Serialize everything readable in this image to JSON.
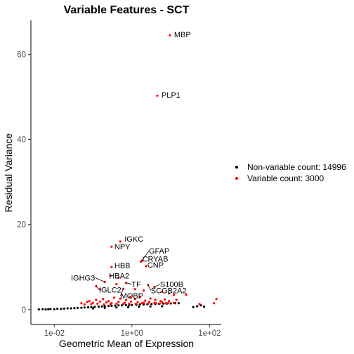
{
  "chart_data": {
    "type": "scatter",
    "title": "Variable Features - SCT",
    "xlabel": "Geometric Mean of Expression",
    "ylabel": "Residual Variance",
    "x_scale": "log10",
    "xlim": [
      0.0025,
      200
    ],
    "ylim": [
      -3.5,
      68
    ],
    "x_ticks": [
      {
        "value": 0.01,
        "label": "1e-02"
      },
      {
        "value": 1,
        "label": "1e+00"
      },
      {
        "value": 100,
        "label": "1e+02"
      }
    ],
    "y_ticks": [
      {
        "value": 0,
        "label": "0"
      },
      {
        "value": 20,
        "label": "20"
      },
      {
        "value": 40,
        "label": "40"
      },
      {
        "value": 60,
        "label": "60"
      }
    ],
    "grid": false,
    "legend_position": "right",
    "series": [
      {
        "name": "Non-variable count: 14996",
        "color": "#000000",
        "points": [
          [
            0.004,
            0.05
          ],
          [
            0.005,
            0.1
          ],
          [
            0.006,
            0.05
          ],
          [
            0.007,
            0.1
          ],
          [
            0.008,
            0.15
          ],
          [
            0.01,
            0.1
          ],
          [
            0.012,
            0.2
          ],
          [
            0.015,
            0.15
          ],
          [
            0.018,
            0.25
          ],
          [
            0.022,
            0.3
          ],
          [
            0.027,
            0.3
          ],
          [
            0.033,
            0.35
          ],
          [
            0.04,
            0.4
          ],
          [
            0.05,
            0.45
          ],
          [
            0.06,
            0.5
          ],
          [
            0.075,
            0.55
          ],
          [
            0.09,
            0.6
          ],
          [
            0.11,
            0.65
          ],
          [
            0.14,
            0.7
          ],
          [
            0.17,
            0.75
          ],
          [
            0.2,
            0.8
          ],
          [
            0.25,
            0.85
          ],
          [
            0.3,
            0.9
          ],
          [
            0.37,
            0.95
          ],
          [
            0.45,
            1.0
          ],
          [
            0.55,
            1.0
          ],
          [
            0.7,
            1.05
          ],
          [
            0.85,
            1.1
          ],
          [
            1.0,
            1.1
          ],
          [
            1.3,
            1.15
          ],
          [
            1.6,
            1.2
          ],
          [
            2.0,
            1.2
          ],
          [
            2.5,
            1.25
          ],
          [
            3.2,
            1.3
          ],
          [
            4.0,
            1.3
          ],
          [
            5.0,
            1.35
          ],
          [
            6.5,
            1.4
          ],
          [
            8.0,
            1.4
          ],
          [
            10,
            1.45
          ],
          [
            13,
            1.5
          ],
          [
            16,
            1.5
          ],
          [
            0.1,
            0.3
          ],
          [
            0.2,
            0.4
          ],
          [
            0.4,
            0.5
          ],
          [
            0.8,
            0.6
          ],
          [
            1.5,
            0.7
          ],
          [
            3.0,
            0.75
          ],
          [
            6.0,
            0.8
          ],
          [
            38,
            0.6
          ],
          [
            48,
            0.8
          ],
          [
            60,
            1.0
          ],
          [
            72,
            0.7
          ]
        ]
      },
      {
        "name": "Variable count: 3000",
        "color": "#ff0000",
        "points": [
          [
            9.5,
            64.5
          ],
          [
            4.5,
            50.3
          ],
          [
            0.5,
            16.0
          ],
          [
            0.3,
            14.8
          ],
          [
            1.8,
            11.5
          ],
          [
            1.7,
            11.3
          ],
          [
            2.3,
            10.2
          ],
          [
            0.3,
            10.0
          ],
          [
            0.28,
            8.0
          ],
          [
            0.45,
            7.5
          ],
          [
            0.2,
            6.5
          ],
          [
            0.4,
            6.0
          ],
          [
            0.7,
            6.3
          ],
          [
            2.6,
            5.8
          ],
          [
            3.8,
            5.3
          ],
          [
            0.12,
            5.5
          ],
          [
            0.15,
            4.8
          ],
          [
            0.6,
            4.9
          ],
          [
            1.2,
            4.8
          ],
          [
            2.0,
            4.5
          ],
          [
            6.0,
            4.2
          ],
          [
            9.0,
            3.8
          ],
          [
            12,
            3.5
          ],
          [
            0.08,
            2.0
          ],
          [
            0.12,
            2.3
          ],
          [
            0.18,
            2.5
          ],
          [
            0.25,
            2.0
          ],
          [
            0.35,
            2.8
          ],
          [
            0.5,
            2.6
          ],
          [
            0.7,
            2.2
          ],
          [
            0.9,
            3.0
          ],
          [
            1.2,
            2.5
          ],
          [
            1.6,
            2.9
          ],
          [
            2.2,
            2.1
          ],
          [
            3.0,
            2.6
          ],
          [
            4.0,
            2.3
          ],
          [
            5.5,
            2.0
          ],
          [
            7.0,
            2.4
          ],
          [
            9.0,
            2.0
          ],
          [
            14,
            2.3
          ],
          [
            0.05,
            1.5
          ],
          [
            0.07,
            1.8
          ],
          [
            0.1,
            1.6
          ],
          [
            0.15,
            1.9
          ],
          [
            0.22,
            1.7
          ],
          [
            0.3,
            1.5
          ],
          [
            0.45,
            1.8
          ],
          [
            0.65,
            1.6
          ],
          [
            0.95,
            1.9
          ],
          [
            1.4,
            1.7
          ],
          [
            2.0,
            1.6
          ],
          [
            2.8,
            1.8
          ],
          [
            4.2,
            1.5
          ],
          [
            6.0,
            1.7
          ],
          [
            8.5,
            1.5
          ],
          [
            12,
            1.6
          ],
          [
            0.06,
            1.2
          ],
          [
            0.09,
            1.3
          ],
          [
            0.13,
            1.4
          ],
          [
            0.19,
            1.2
          ],
          [
            0.28,
            1.3
          ],
          [
            0.4,
            1.4
          ],
          [
            0.6,
            1.3
          ],
          [
            0.85,
            1.4
          ],
          [
            1.25,
            1.3
          ],
          [
            1.8,
            1.5
          ],
          [
            2.6,
            1.4
          ],
          [
            3.8,
            1.6
          ],
          [
            5.2,
            1.4
          ],
          [
            7.5,
            1.5
          ],
          [
            25,
            3.5
          ],
          [
            55,
            1.3
          ],
          [
            150,
            2.5
          ],
          [
            130,
            1.5
          ]
        ]
      }
    ],
    "annotations": [
      {
        "label": "MBP",
        "x": 9.5,
        "y": 64.5
      },
      {
        "label": "PLP1",
        "x": 4.5,
        "y": 50.3
      },
      {
        "label": "IGKC",
        "x": 0.5,
        "y": 16.0
      },
      {
        "label": "NPY",
        "x": 0.3,
        "y": 14.8
      },
      {
        "label": "GFAP",
        "x": 1.8,
        "y": 11.5
      },
      {
        "label": "CRYAB",
        "x": 1.7,
        "y": 11.3
      },
      {
        "label": "CNP",
        "x": 2.3,
        "y": 10.2
      },
      {
        "label": "HBB",
        "x": 0.3,
        "y": 10.0
      },
      {
        "label": "HBA2",
        "x": 0.28,
        "y": 8.0
      },
      {
        "label": "TF",
        "x": 0.7,
        "y": 6.3
      },
      {
        "label": "SCGB2A2",
        "x": 2.6,
        "y": 5.8
      },
      {
        "label": "IGHG3",
        "x": 0.2,
        "y": 6.5
      },
      {
        "label": "S100B",
        "x": 3.8,
        "y": 5.3
      },
      {
        "label": "IGLC2",
        "x": 0.12,
        "y": 5.5
      },
      {
        "label": "MOBP",
        "x": 0.6,
        "y": 4.9
      }
    ]
  }
}
